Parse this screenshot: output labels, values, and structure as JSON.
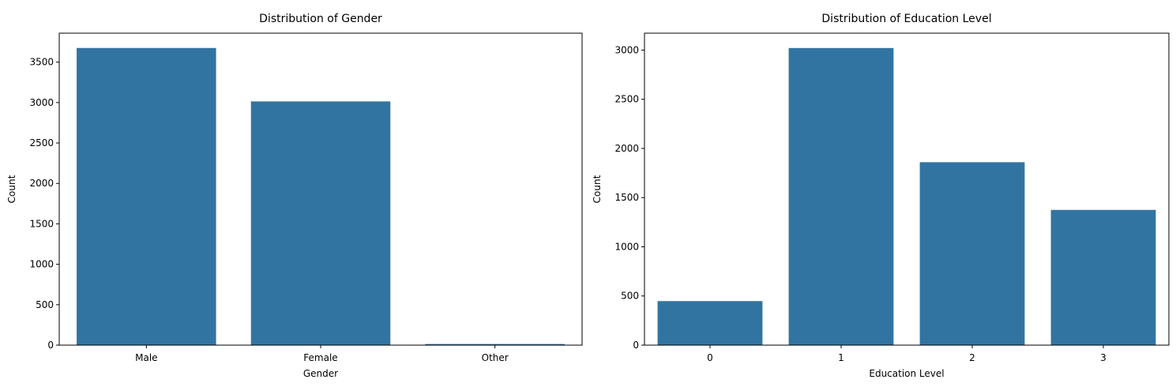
{
  "chart_data": [
    {
      "type": "bar",
      "title": "Distribution of Gender",
      "xlabel": "Gender",
      "ylabel": "Count",
      "categories": [
        "Male",
        "Female",
        "Other"
      ],
      "values": [
        3675,
        3014,
        14
      ],
      "ylim": [
        0,
        3858
      ],
      "yticks": [
        0,
        500,
        1000,
        1500,
        2000,
        2500,
        3000,
        3500
      ],
      "grid": false,
      "bar_color": "#3274a1"
    },
    {
      "type": "bar",
      "title": "Distribution of Education Level",
      "xlabel": "Education Level",
      "ylabel": "Count",
      "categories": [
        "0",
        "1",
        "2",
        "3"
      ],
      "values": [
        448,
        3021,
        1860,
        1375
      ],
      "ylim": [
        0,
        3172
      ],
      "yticks": [
        0,
        500,
        1000,
        1500,
        2000,
        2500,
        3000
      ],
      "grid": false,
      "bar_color": "#3274a1"
    }
  ]
}
